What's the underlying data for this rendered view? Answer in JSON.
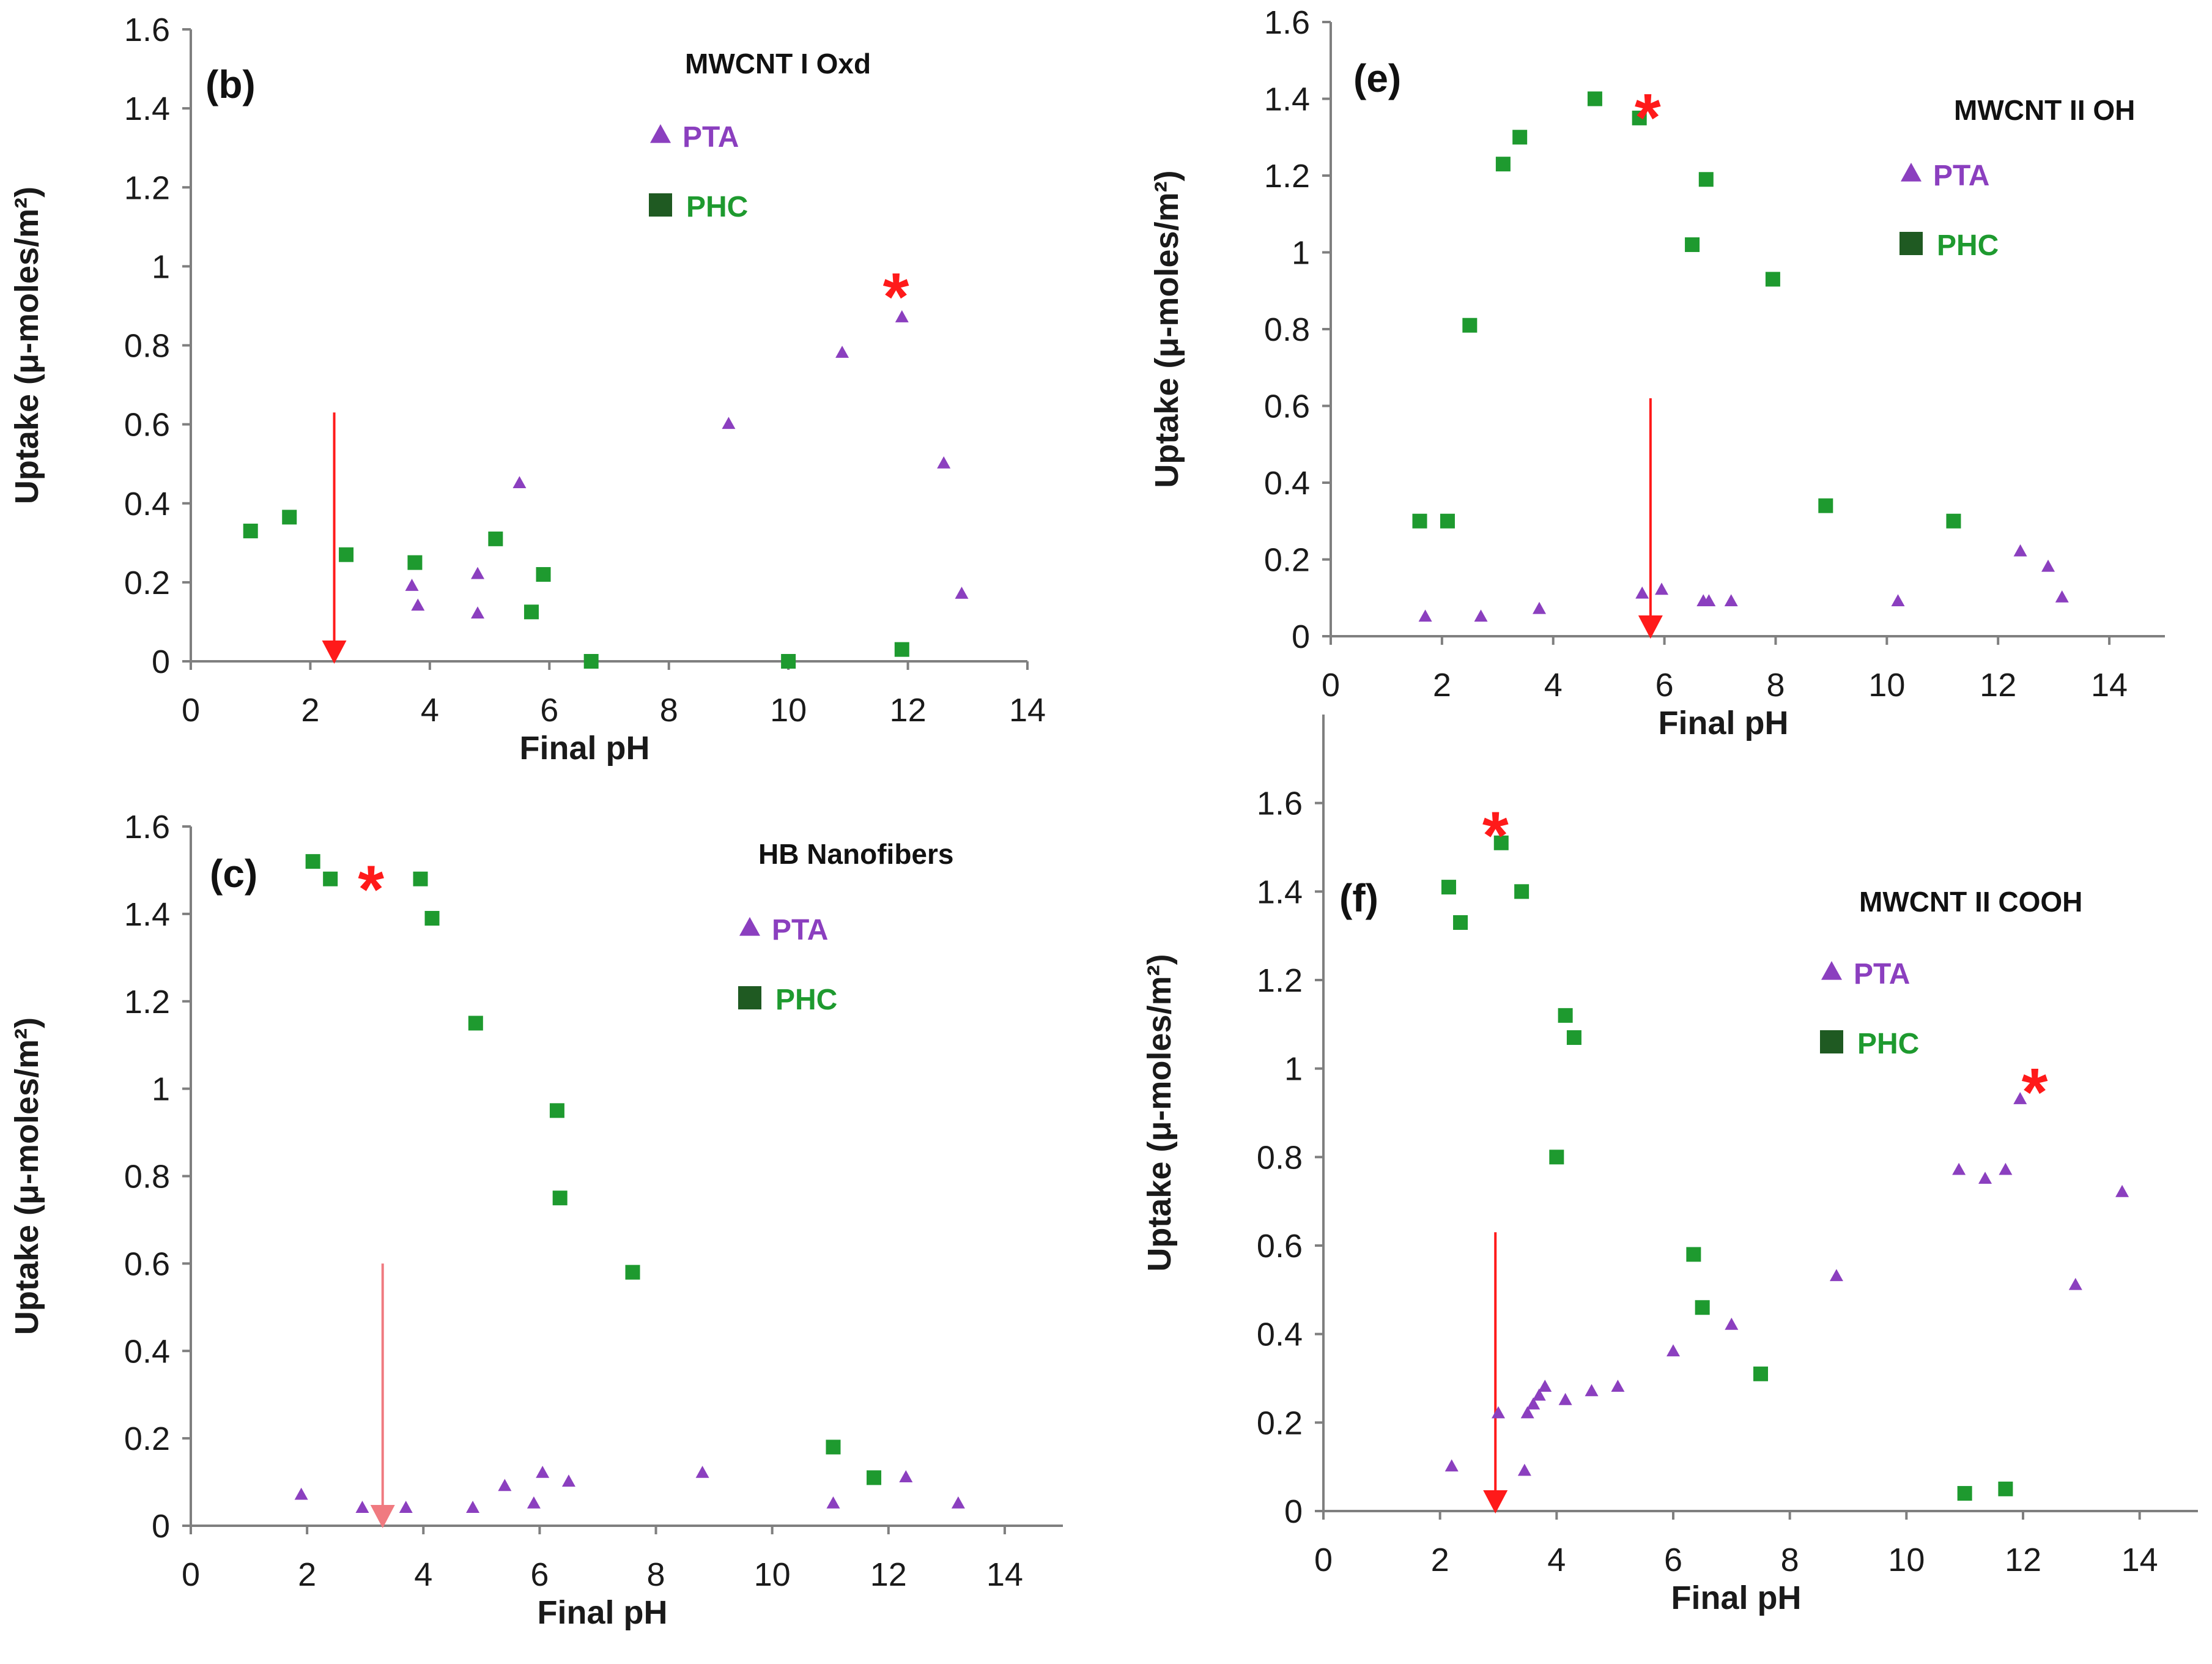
{
  "colors": {
    "pta": "#8b3fbf",
    "phc": "#1e9a2f",
    "phc_legend": "#1f5a22",
    "annotation": "#ff1a1a",
    "arrow_c": "#f07a80",
    "axis": "#7f7f7f"
  },
  "chart_data": [
    {
      "type": "scatter",
      "panel_label": "(b)",
      "title": "MWCNT I Oxd",
      "xlabel": "Final pH",
      "ylabel": "Uptake (μ-moles/m²)",
      "xlim": [
        0,
        14
      ],
      "ylim": [
        0,
        1.6
      ],
      "xticks": [
        0,
        2,
        4,
        6,
        8,
        10,
        12,
        14
      ],
      "xtick_labels": [
        "0",
        "2",
        "4",
        "6",
        "8",
        "10",
        "12",
        "14"
      ],
      "yticks": [
        0,
        0.2,
        0.4,
        0.6,
        0.8,
        1,
        1.2,
        1.4,
        1.6
      ],
      "ytick_labels": [
        "0",
        "0.2",
        "0.4",
        "0.6",
        "0.8",
        "1",
        "1.2",
        "1.4",
        "1.6"
      ],
      "legend": [
        "PTA",
        "PHC"
      ],
      "series": [
        {
          "name": "PTA",
          "marker": "triangle",
          "points": [
            [
              3.7,
              0.19
            ],
            [
              3.8,
              0.14
            ],
            [
              4.8,
              0.22
            ],
            [
              4.8,
              0.12
            ],
            [
              5.5,
              0.45
            ],
            [
              9.0,
              0.6
            ],
            [
              10.9,
              0.78
            ],
            [
              11.9,
              0.87
            ],
            [
              12.6,
              0.5
            ],
            [
              12.9,
              0.17
            ]
          ]
        },
        {
          "name": "PHC",
          "marker": "square",
          "points": [
            [
              1.0,
              0.33
            ],
            [
              1.65,
              0.365
            ],
            [
              2.6,
              0.27
            ],
            [
              3.75,
              0.25
            ],
            [
              5.1,
              0.31
            ],
            [
              5.9,
              0.22
            ],
            [
              5.7,
              0.125
            ],
            [
              6.7,
              0.0
            ],
            [
              10.0,
              0.0
            ],
            [
              11.9,
              0.03
            ]
          ]
        }
      ],
      "annotations": [
        {
          "type": "asterisk",
          "text": "*",
          "x": 11.8,
          "y": 0.96
        },
        {
          "type": "arrow",
          "x": 2.4,
          "y_from": 0.63,
          "y_to": 0.0
        }
      ]
    },
    {
      "type": "scatter",
      "panel_label": "(e)",
      "title": "MWCNT II OH",
      "xlabel": "Final pH",
      "ylabel": "Uptake (μ-moles/m²)",
      "xlim": [
        0,
        15
      ],
      "ylim": [
        0,
        1.6
      ],
      "xticks": [
        0,
        2,
        4,
        6,
        8,
        10,
        12,
        14
      ],
      "xtick_labels": [
        "0",
        "2",
        "4",
        "6",
        "8",
        "10",
        "12",
        "14"
      ],
      "yticks": [
        0,
        0.2,
        0.4,
        0.6,
        0.8,
        1,
        1.2,
        1.4,
        1.6
      ],
      "ytick_labels": [
        "0",
        "0.2",
        "0.4",
        "0.6",
        "0.8",
        "1",
        "1.2",
        "1.4",
        "1.6"
      ],
      "legend": [
        "PTA",
        "PHC"
      ],
      "series": [
        {
          "name": "PTA",
          "marker": "triangle",
          "points": [
            [
              1.7,
              0.05
            ],
            [
              2.7,
              0.05
            ],
            [
              3.75,
              0.07
            ],
            [
              5.6,
              0.11
            ],
            [
              5.95,
              0.12
            ],
            [
              6.7,
              0.09
            ],
            [
              6.8,
              0.09
            ],
            [
              7.2,
              0.09
            ],
            [
              10.2,
              0.09
            ],
            [
              12.4,
              0.22
            ],
            [
              12.9,
              0.18
            ],
            [
              13.15,
              0.1
            ]
          ]
        },
        {
          "name": "PHC",
          "marker": "square",
          "points": [
            [
              1.6,
              0.3
            ],
            [
              2.1,
              0.3
            ],
            [
              2.5,
              0.81
            ],
            [
              3.1,
              1.23
            ],
            [
              3.4,
              1.3
            ],
            [
              4.75,
              1.4
            ],
            [
              5.55,
              1.35
            ],
            [
              6.5,
              1.02
            ],
            [
              6.75,
              1.19
            ],
            [
              7.95,
              0.93
            ],
            [
              8.9,
              0.34
            ],
            [
              11.2,
              0.3
            ]
          ]
        }
      ],
      "annotations": [
        {
          "type": "asterisk",
          "text": "*",
          "x": 5.7,
          "y": 1.39
        },
        {
          "type": "arrow",
          "x": 5.75,
          "y_from": 0.62,
          "y_to": 0.0
        }
      ]
    },
    {
      "type": "scatter",
      "panel_label": "(c)",
      "title": "HB Nanofibers",
      "xlabel": "Final pH",
      "ylabel": "Uptake (μ-moles/m²)",
      "xlim": [
        0,
        15
      ],
      "ylim": [
        0,
        1.6
      ],
      "xticks": [
        0,
        2,
        4,
        6,
        8,
        10,
        12,
        14
      ],
      "xtick_labels": [
        "0",
        "2",
        "4",
        "6",
        "8",
        "10",
        "12",
        "14"
      ],
      "yticks": [
        0,
        0.2,
        0.4,
        0.6,
        0.8,
        1,
        1.2,
        1.4,
        1.6
      ],
      "ytick_labels": [
        "0",
        "0.2",
        "0.4",
        "0.6",
        "0.8",
        "1",
        "1.2",
        "1.4",
        "1.6"
      ],
      "legend": [
        "PTA",
        "PHC"
      ],
      "series": [
        {
          "name": "PTA",
          "marker": "triangle",
          "points": [
            [
              1.9,
              0.07
            ],
            [
              2.95,
              0.04
            ],
            [
              3.7,
              0.04
            ],
            [
              4.85,
              0.04
            ],
            [
              5.4,
              0.09
            ],
            [
              5.9,
              0.05
            ],
            [
              6.05,
              0.12
            ],
            [
              6.5,
              0.1
            ],
            [
              8.8,
              0.12
            ],
            [
              11.05,
              0.05
            ],
            [
              12.3,
              0.11
            ],
            [
              13.2,
              0.05
            ]
          ]
        },
        {
          "name": "PHC",
          "marker": "square",
          "points": [
            [
              2.1,
              1.52
            ],
            [
              2.4,
              1.48
            ],
            [
              3.95,
              1.48
            ],
            [
              4.15,
              1.39
            ],
            [
              4.9,
              1.15
            ],
            [
              6.3,
              0.95
            ],
            [
              6.35,
              0.75
            ],
            [
              7.6,
              0.58
            ],
            [
              11.05,
              0.18
            ],
            [
              11.75,
              0.11
            ]
          ]
        }
      ],
      "annotations": [
        {
          "type": "asterisk",
          "text": "*",
          "x": 3.1,
          "y": 1.49
        },
        {
          "type": "arrow",
          "x": 3.3,
          "y_from": 0.6,
          "y_to": 0.0
        }
      ]
    },
    {
      "type": "scatter",
      "panel_label": "(f)",
      "title": "MWCNT II COOH",
      "xlabel": "Final pH",
      "ylabel": "Uptake (μ-moles/m²)",
      "xlim": [
        0,
        15
      ],
      "ylim": [
        0,
        1.8
      ],
      "xticks": [
        0,
        2,
        4,
        6,
        8,
        10,
        12,
        14
      ],
      "xtick_labels": [
        "0",
        "2",
        "4",
        "6",
        "8",
        "10",
        "12",
        "14"
      ],
      "yticks": [
        0,
        0.2,
        0.4,
        0.6,
        0.8,
        1,
        1.2,
        1.4,
        1.6
      ],
      "ytick_labels": [
        "0",
        "0.2",
        "0.4",
        "0.6",
        "0.8",
        "1",
        "1.2",
        "1.4",
        "1.6"
      ],
      "legend": [
        "PTA",
        "PHC"
      ],
      "series": [
        {
          "name": "PTA",
          "marker": "triangle",
          "points": [
            [
              2.2,
              0.1
            ],
            [
              3.0,
              0.22
            ],
            [
              3.45,
              0.09
            ],
            [
              3.5,
              0.22
            ],
            [
              3.6,
              0.24
            ],
            [
              3.7,
              0.26
            ],
            [
              3.8,
              0.28
            ],
            [
              4.15,
              0.25
            ],
            [
              4.6,
              0.27
            ],
            [
              5.05,
              0.28
            ],
            [
              6.0,
              0.36
            ],
            [
              7.0,
              0.42
            ],
            [
              8.8,
              0.53
            ],
            [
              10.9,
              0.77
            ],
            [
              11.35,
              0.75
            ],
            [
              11.7,
              0.77
            ],
            [
              11.95,
              0.93
            ],
            [
              12.9,
              0.51
            ],
            [
              13.7,
              0.72
            ]
          ]
        },
        {
          "name": "PHC",
          "marker": "square",
          "points": [
            [
              2.15,
              1.41
            ],
            [
              2.35,
              1.33
            ],
            [
              3.05,
              1.51
            ],
            [
              3.4,
              1.4
            ],
            [
              4.15,
              1.12
            ],
            [
              4.3,
              1.07
            ],
            [
              4.0,
              0.8
            ],
            [
              6.35,
              0.58
            ],
            [
              6.5,
              0.46
            ],
            [
              7.5,
              0.31
            ],
            [
              11.0,
              0.04
            ],
            [
              11.7,
              0.05
            ]
          ]
        }
      ],
      "annotations": [
        {
          "type": "asterisk",
          "text": "*",
          "x": 2.95,
          "y": 1.56
        },
        {
          "type": "asterisk",
          "text": "*",
          "x": 12.2,
          "y": 0.98
        },
        {
          "type": "arrow",
          "x": 2.95,
          "y_from": 0.63,
          "y_to": 0.0
        }
      ]
    }
  ]
}
